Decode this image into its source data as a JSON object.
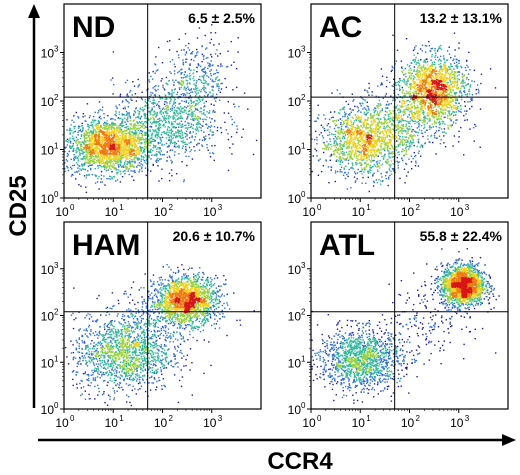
{
  "chart_data": {
    "type": "scatter",
    "xlabel": "CCR4",
    "ylabel": "CD25",
    "scale": "log",
    "axis_range": [
      1,
      10000
    ],
    "tick_labels": [
      "10",
      "10",
      "10",
      "10"
    ],
    "tick_exponents": [
      "0",
      "1",
      "2",
      "3"
    ],
    "gate": {
      "x": 50,
      "y": 120
    },
    "panels": [
      {
        "title": "ND",
        "stat": "6.5 ± 2.5%",
        "clusters": [
          {
            "x": 8,
            "y": 12,
            "spread_x": 0.45,
            "spread_y": 0.28,
            "weight": 0.62
          },
          {
            "x": 120,
            "y": 40,
            "spread_x": 0.55,
            "spread_y": 0.4,
            "weight": 0.28
          },
          {
            "x": 500,
            "y": 300,
            "spread_x": 0.35,
            "spread_y": 0.4,
            "weight": 0.1
          }
        ]
      },
      {
        "title": "AC",
        "stat": "13.2 ± 13.1%",
        "clusters": [
          {
            "x": 12,
            "y": 15,
            "spread_x": 0.45,
            "spread_y": 0.35,
            "weight": 0.4
          },
          {
            "x": 300,
            "y": 180,
            "spread_x": 0.35,
            "spread_y": 0.35,
            "weight": 0.45
          },
          {
            "x": 80,
            "y": 40,
            "spread_x": 0.5,
            "spread_y": 0.4,
            "weight": 0.15
          }
        ]
      },
      {
        "title": "HAM",
        "stat": "20.6 ± 10.7%",
        "clusters": [
          {
            "x": 15,
            "y": 15,
            "spread_x": 0.5,
            "spread_y": 0.4,
            "weight": 0.4
          },
          {
            "x": 300,
            "y": 220,
            "spread_x": 0.32,
            "spread_y": 0.25,
            "weight": 0.5
          },
          {
            "x": 60,
            "y": 60,
            "spread_x": 0.5,
            "spread_y": 0.4,
            "weight": 0.1
          }
        ]
      },
      {
        "title": "ATL",
        "stat": "55.8 ± 22.4%",
        "clusters": [
          {
            "x": 10,
            "y": 12,
            "spread_x": 0.42,
            "spread_y": 0.32,
            "weight": 0.4
          },
          {
            "x": 1200,
            "y": 450,
            "spread_x": 0.22,
            "spread_y": 0.22,
            "weight": 0.55
          },
          {
            "x": 200,
            "y": 80,
            "spread_x": 0.45,
            "spread_y": 0.4,
            "weight": 0.05
          }
        ]
      }
    ],
    "colors": {
      "low": "#1a1aa8",
      "mid1": "#2e6fd6",
      "mid2": "#2fb89a",
      "mid3": "#9ad13a",
      "high1": "#f0d21c",
      "high2": "#f07a12",
      "peak": "#d81414"
    }
  }
}
